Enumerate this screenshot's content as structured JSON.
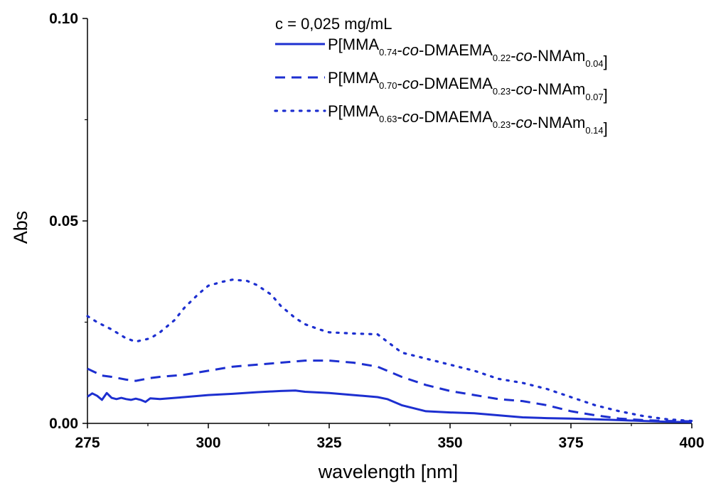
{
  "chart_data": {
    "type": "line",
    "title": "",
    "xlabel": "wavelength [nm]",
    "ylabel": "Abs",
    "xlim": [
      275,
      400
    ],
    "ylim": [
      0,
      0.1
    ],
    "x_ticks": [
      275,
      300,
      325,
      350,
      375,
      400
    ],
    "x_tick_labels": [
      "275",
      "300",
      "325",
      "350",
      "375",
      "400"
    ],
    "y_ticks": [
      0,
      0.05,
      0.1
    ],
    "y_tick_labels": [
      "0.00",
      "0.05",
      "0.10"
    ],
    "grid": false,
    "legend_position": "top-right",
    "annotation": "c = 0,025 mg/mL",
    "color": "#1d2fd0",
    "series": [
      {
        "style": "solid",
        "legend_parts": [
          {
            "t": "P[MMA"
          },
          {
            "t": "0.74",
            "sub": true
          },
          {
            "t": "-"
          },
          {
            "t": "co",
            "it": true
          },
          {
            "t": "-DMAEMA"
          },
          {
            "t": "0.22",
            "sub": true
          },
          {
            "t": "-"
          },
          {
            "t": "co",
            "it": true
          },
          {
            "t": "-NMAm"
          },
          {
            "t": "0.04",
            "sub": true
          },
          {
            "t": "]"
          }
        ],
        "x": [
          275,
          276,
          277,
          278,
          279,
          280,
          281,
          282,
          283,
          284,
          285,
          286,
          287,
          288,
          290,
          295,
          300,
          305,
          310,
          315,
          318,
          320,
          325,
          330,
          335,
          337,
          340,
          345,
          350,
          355,
          360,
          365,
          370,
          375,
          380,
          385,
          390,
          395,
          400
        ],
        "y": [
          0.0066,
          0.0074,
          0.0068,
          0.0058,
          0.0075,
          0.0063,
          0.006,
          0.0063,
          0.006,
          0.0058,
          0.0061,
          0.0058,
          0.0053,
          0.0062,
          0.006,
          0.0065,
          0.007,
          0.0073,
          0.0077,
          0.008,
          0.0081,
          0.0078,
          0.0075,
          0.007,
          0.0065,
          0.006,
          0.0045,
          0.003,
          0.0027,
          0.0025,
          0.002,
          0.0015,
          0.0013,
          0.0012,
          0.001,
          0.0008,
          0.0006,
          0.0004,
          0.0003
        ]
      },
      {
        "style": "dashed",
        "legend_parts": [
          {
            "t": "P[MMA"
          },
          {
            "t": "0.70",
            "sub": true
          },
          {
            "t": "-"
          },
          {
            "t": "co",
            "it": true
          },
          {
            "t": "-DMAEMA"
          },
          {
            "t": "0.23",
            "sub": true
          },
          {
            "t": "-"
          },
          {
            "t": "co",
            "it": true
          },
          {
            "t": "-NMAm"
          },
          {
            "t": "0.07",
            "sub": true
          },
          {
            "t": "]"
          }
        ],
        "x": [
          275,
          278,
          280,
          283,
          285,
          288,
          290,
          295,
          300,
          305,
          310,
          315,
          320,
          325,
          330,
          335,
          340,
          345,
          350,
          355,
          360,
          365,
          370,
          375,
          380,
          385,
          390,
          395,
          400
        ],
        "y": [
          0.0135,
          0.0118,
          0.0115,
          0.0108,
          0.0105,
          0.0112,
          0.0115,
          0.012,
          0.013,
          0.014,
          0.0145,
          0.015,
          0.0155,
          0.0155,
          0.015,
          0.014,
          0.0115,
          0.0095,
          0.008,
          0.007,
          0.006,
          0.0055,
          0.0045,
          0.003,
          0.002,
          0.0012,
          0.0008,
          0.0006,
          0.0005
        ]
      },
      {
        "style": "dotted",
        "legend_parts": [
          {
            "t": "P[MMA"
          },
          {
            "t": "0.63",
            "sub": true
          },
          {
            "t": "-"
          },
          {
            "t": "co",
            "it": true
          },
          {
            "t": "-DMAEMA"
          },
          {
            "t": "0.23",
            "sub": true
          },
          {
            "t": "-"
          },
          {
            "t": "co",
            "it": true
          },
          {
            "t": "-NMAm"
          },
          {
            "t": "0.14",
            "sub": true
          },
          {
            "t": "]"
          }
        ],
        "x": [
          275,
          277,
          280,
          283,
          285,
          288,
          290,
          293,
          295,
          298,
          300,
          303,
          305,
          308,
          310,
          313,
          315,
          318,
          320,
          323,
          325,
          330,
          335,
          340,
          345,
          350,
          355,
          360,
          365,
          370,
          375,
          380,
          385,
          390,
          395,
          400
        ],
        "y": [
          0.0265,
          0.025,
          0.0232,
          0.021,
          0.0202,
          0.021,
          0.0225,
          0.0255,
          0.0285,
          0.032,
          0.034,
          0.035,
          0.0355,
          0.0352,
          0.0342,
          0.0318,
          0.029,
          0.026,
          0.0245,
          0.0232,
          0.0225,
          0.0222,
          0.022,
          0.0175,
          0.016,
          0.0145,
          0.013,
          0.011,
          0.01,
          0.0085,
          0.0065,
          0.0045,
          0.003,
          0.0018,
          0.001,
          0.0006
        ]
      }
    ]
  }
}
